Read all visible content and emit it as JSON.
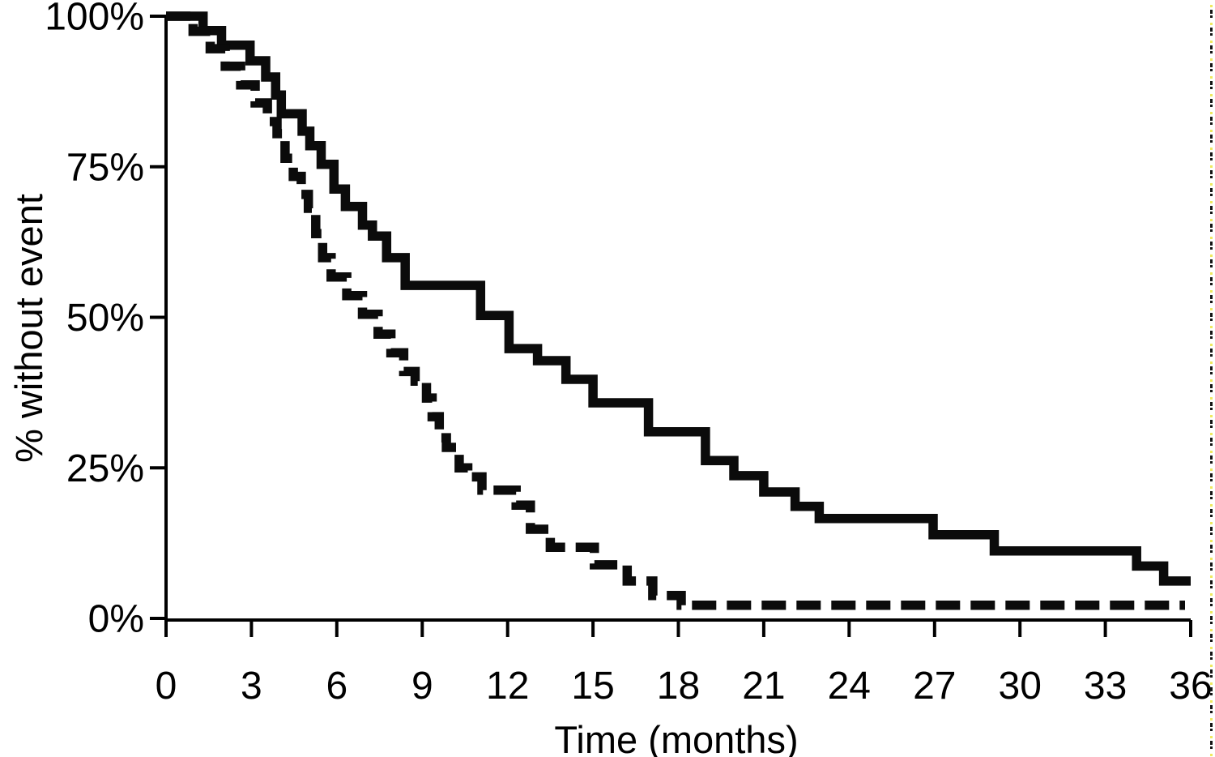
{
  "page": {
    "background": "#ffffff"
  },
  "chart_data": {
    "type": "line",
    "subtype": "kaplan-meier-step-curves",
    "title": "",
    "xlabel": "Time (months)",
    "ylabel": "% without event",
    "xlim": [
      0,
      36
    ],
    "ylim": [
      0,
      100
    ],
    "grid": false,
    "legend": "none",
    "axis_color": "#000000",
    "curve_color": "#0b0b0b",
    "x_ticks": [
      0,
      3,
      6,
      9,
      12,
      15,
      18,
      21,
      24,
      27,
      30,
      33,
      36
    ],
    "y_ticks": [
      {
        "value": 100,
        "label": "100%"
      },
      {
        "value": 75,
        "label": "75%"
      },
      {
        "value": 50,
        "label": "50%"
      },
      {
        "value": 25,
        "label": "25%"
      },
      {
        "value": 0,
        "label": "0%"
      }
    ],
    "series": [
      {
        "name": "solid-curve",
        "line_style": "solid",
        "start": [
          0,
          100
        ],
        "end_time": 36,
        "steps": [
          [
            1.3,
            97.6
          ],
          [
            1.95,
            95.2
          ],
          [
            2.95,
            92.6
          ],
          [
            3.5,
            89.9
          ],
          [
            3.85,
            86.9
          ],
          [
            4.05,
            83.8
          ],
          [
            4.78,
            80.9
          ],
          [
            5.05,
            78.5
          ],
          [
            5.45,
            75.4
          ],
          [
            5.9,
            71.3
          ],
          [
            6.3,
            68.4
          ],
          [
            6.9,
            65.3
          ],
          [
            7.25,
            63.5
          ],
          [
            7.75,
            59.9
          ],
          [
            8.4,
            55.3
          ],
          [
            11.05,
            50.3
          ],
          [
            12.05,
            44.8
          ],
          [
            13.05,
            42.8
          ],
          [
            14.05,
            39.7
          ],
          [
            15.0,
            35.8
          ],
          [
            16.95,
            31.0
          ],
          [
            18.95,
            26.2
          ],
          [
            19.95,
            23.7
          ],
          [
            21.0,
            21.0
          ],
          [
            22.1,
            18.6
          ],
          [
            22.95,
            16.6
          ],
          [
            26.95,
            13.9
          ],
          [
            29.1,
            11.2
          ],
          [
            34.1,
            8.7
          ],
          [
            35.05,
            6.2
          ]
        ]
      },
      {
        "name": "dashed-curve",
        "line_style": "dashed",
        "start": [
          0,
          100
        ],
        "end_time": 35.8,
        "steps": [
          [
            0.95,
            97.5
          ],
          [
            1.55,
            94.6
          ],
          [
            2.08,
            91.7
          ],
          [
            2.62,
            88.6
          ],
          [
            3.13,
            85.6
          ],
          [
            3.56,
            82.5
          ],
          [
            3.9,
            80.5
          ],
          [
            4.18,
            76.4
          ],
          [
            4.47,
            73.4
          ],
          [
            4.75,
            70.4
          ],
          [
            5.0,
            68.1
          ],
          [
            5.26,
            63.9
          ],
          [
            5.5,
            59.9
          ],
          [
            5.8,
            56.7
          ],
          [
            6.35,
            53.6
          ],
          [
            6.9,
            50.5
          ],
          [
            7.45,
            47.2
          ],
          [
            7.9,
            44.1
          ],
          [
            8.35,
            41.0
          ],
          [
            8.75,
            39.4
          ],
          [
            9.15,
            36.6
          ],
          [
            9.35,
            33.5
          ],
          [
            9.6,
            30.0
          ],
          [
            9.85,
            28.4
          ],
          [
            10.3,
            25.0
          ],
          [
            10.6,
            23.5
          ],
          [
            11.1,
            21.3
          ],
          [
            12.3,
            18.8
          ],
          [
            12.8,
            14.8
          ],
          [
            13.5,
            11.8
          ],
          [
            15.05,
            8.9
          ],
          [
            16.2,
            6.2
          ],
          [
            17.1,
            3.8
          ],
          [
            18.1,
            2.2
          ]
        ]
      }
    ]
  },
  "decorations": {
    "right_edge_dots": {
      "black": "#141414",
      "yellow": "#efe95f"
    }
  }
}
